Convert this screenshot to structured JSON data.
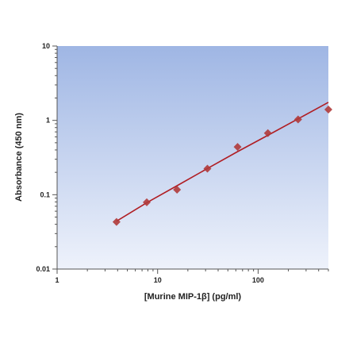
{
  "chart_data": {
    "type": "scatter",
    "title": "",
    "xlabel": "[Murine MIP-1β] (pg/ml)",
    "ylabel": "Absorbance (450 nm)",
    "x_scale": "log",
    "y_scale": "log",
    "xlim": [
      1,
      500
    ],
    "ylim": [
      0.01,
      10
    ],
    "x_ticks": [
      1,
      10,
      100
    ],
    "x_tick_labels": [
      "1",
      "10",
      "100"
    ],
    "y_ticks": [
      0.01,
      0.1,
      1,
      10
    ],
    "y_tick_labels": [
      "0.01",
      "0.1",
      "1",
      "10"
    ],
    "grid": false,
    "legend": "none",
    "series": [
      {
        "points": [
          {
            "x": 3.9,
            "y": 0.043
          },
          {
            "x": 7.8,
            "y": 0.079
          },
          {
            "x": 15.6,
            "y": 0.117
          },
          {
            "x": 31.3,
            "y": 0.224
          },
          {
            "x": 62.5,
            "y": 0.439
          },
          {
            "x": 125,
            "y": 0.674
          },
          {
            "x": 250,
            "y": 1.03
          },
          {
            "x": 500,
            "y": 1.4
          }
        ],
        "color": "#b03a3a"
      }
    ],
    "fit_curve": {
      "color": "#b01e24",
      "x": [
        3.9,
        7.8,
        15.6,
        31.3,
        62.5,
        125,
        250,
        500
      ],
      "y": [
        0.044,
        0.078,
        0.132,
        0.225,
        0.38,
        0.63,
        1.05,
        1.75
      ]
    },
    "plot_background": {
      "top": "#9fb6e4",
      "bottom": "#eef2fb"
    }
  }
}
